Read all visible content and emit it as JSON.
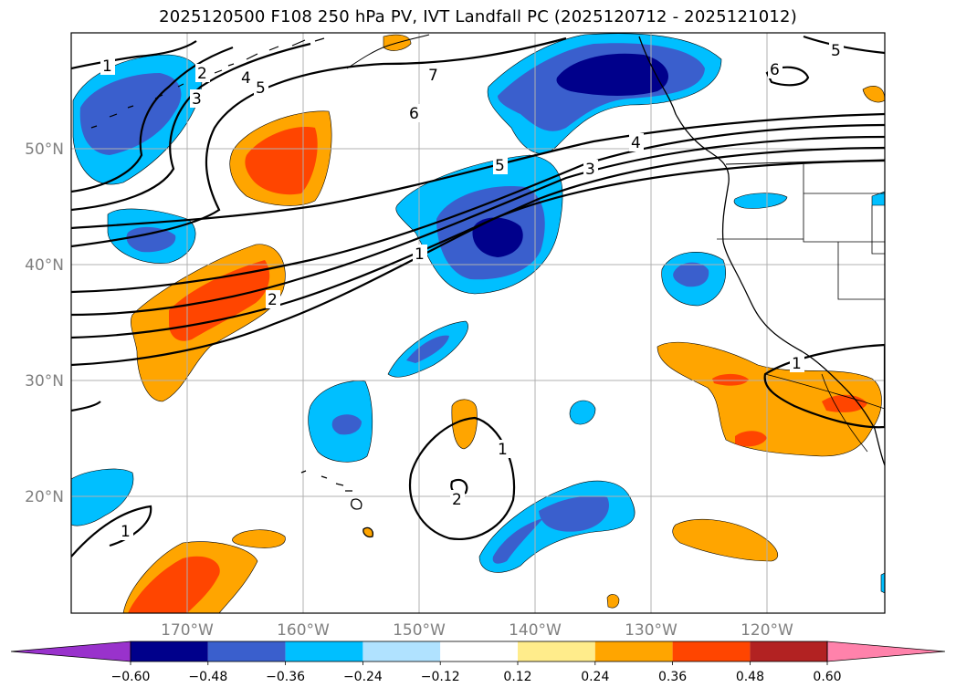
{
  "title": "2025120500 F108 250 hPa PV, IVT Landfall PC (2025120712 - 2025121012)",
  "map": {
    "lat_labels": [
      "50°N",
      "40°N",
      "30°N",
      "20°N"
    ],
    "lon_labels": [
      "170°W",
      "160°W",
      "150°W",
      "140°W",
      "130°W",
      "120°W"
    ],
    "contour_labels": [
      "1",
      "2",
      "3",
      "4",
      "5",
      "6",
      "7",
      "5",
      "6",
      "4",
      "3",
      "5",
      "1",
      "2",
      "1",
      "2",
      "1",
      "1"
    ]
  },
  "colorbar": {
    "tick_labels": [
      "−0.60",
      "−0.48",
      "−0.36",
      "−0.24",
      "−0.12",
      "0.12",
      "0.24",
      "0.36",
      "0.48",
      "0.60"
    ],
    "colors": [
      "#9932cc",
      "#00008b",
      "#3a5fcd",
      "#00bfff",
      "#b0e2ff",
      "#ffffff",
      "#ffec8b",
      "#ffa500",
      "#ff4500",
      "#b22222",
      "#ff82ab"
    ]
  }
}
